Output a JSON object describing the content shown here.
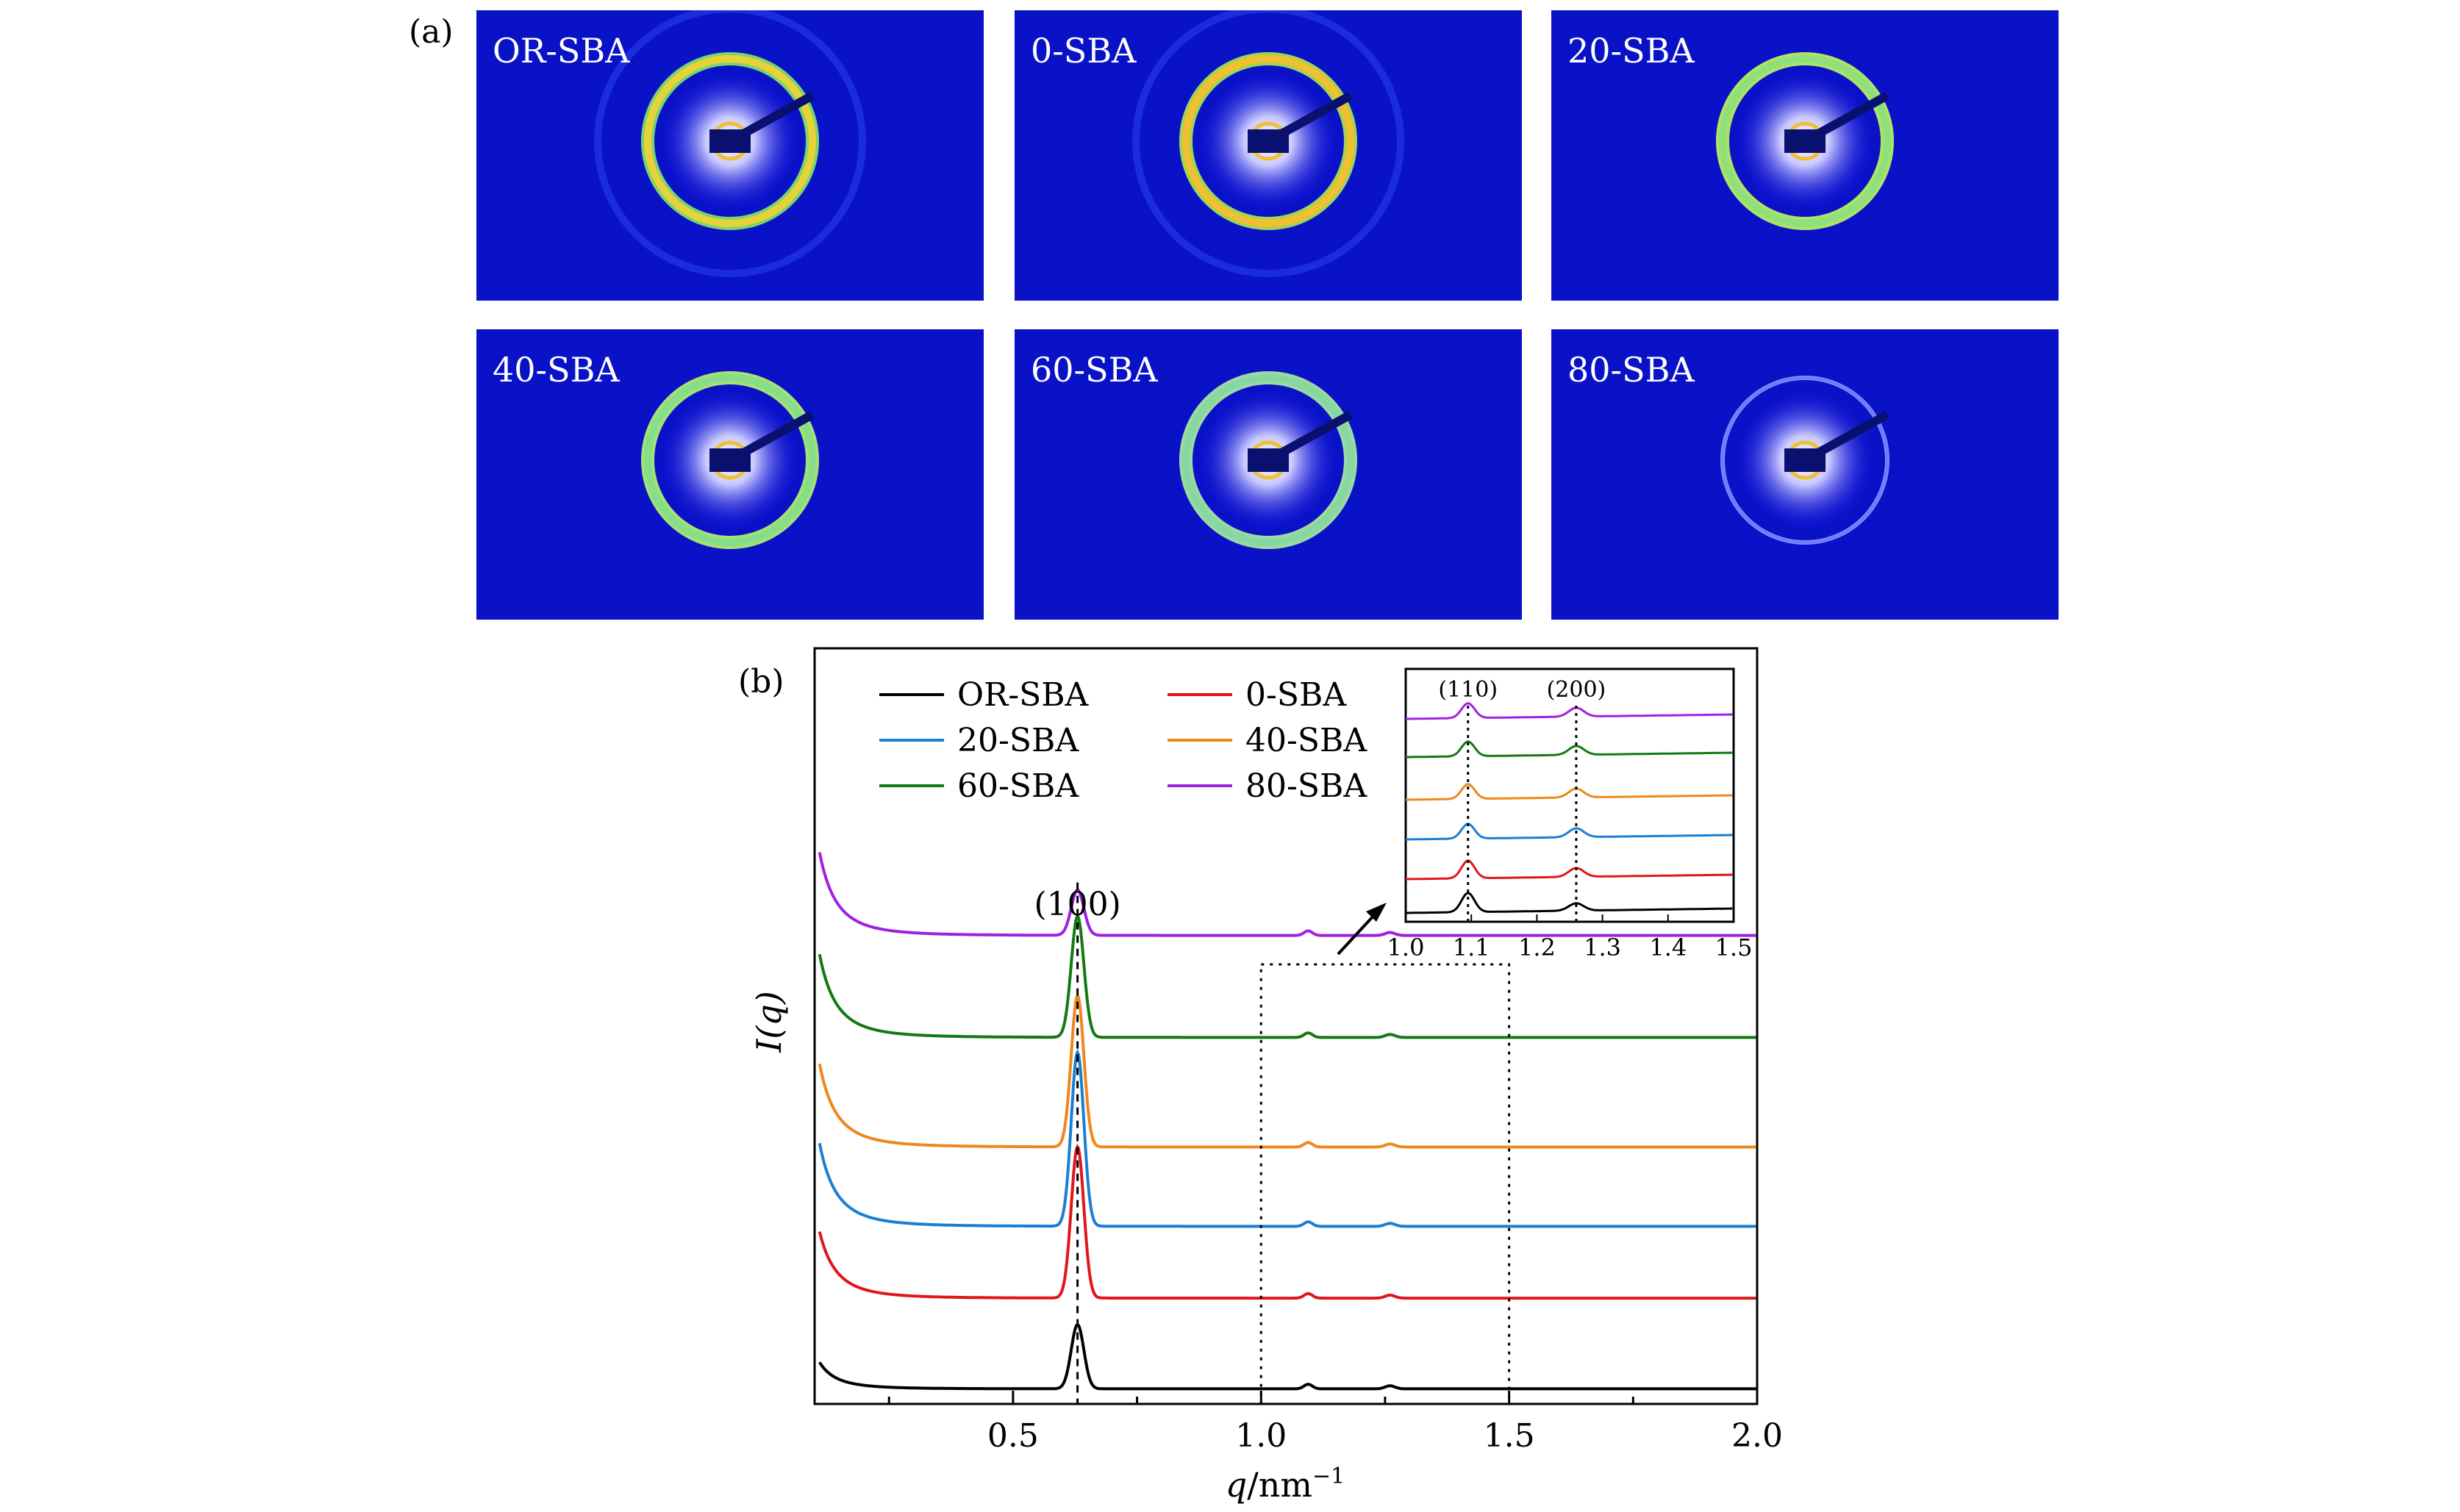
{
  "panel_a_label": "(a)",
  "panel_b_label": "(b)",
  "saxs_images": [
    {
      "label": "OR-SBA",
      "ring_colors": [
        "#e8d23a",
        "#7ee06a"
      ],
      "halo": true
    },
    {
      "label": "0-SBA",
      "ring_colors": [
        "#f0c030",
        "#a8e050"
      ],
      "halo": true
    },
    {
      "label": "20-SBA",
      "ring_colors": [
        "#8fe07a",
        "#b8ee60"
      ],
      "halo": false
    },
    {
      "label": "40-SBA",
      "ring_colors": [
        "#86de86",
        "#b0ec70"
      ],
      "halo": false
    },
    {
      "label": "60-SBA",
      "ring_colors": [
        "#86d8a0",
        "#a8e4a0"
      ],
      "halo": false
    },
    {
      "label": "80-SBA",
      "ring_colors": [
        "#6f78ff",
        "#8a94ff"
      ],
      "halo": false
    }
  ],
  "chart_data": {
    "type": "line",
    "xlabel": "q/nm",
    "xlabel_sup": "−1",
    "ylabel": "I(q)",
    "xlim": [
      0.1,
      2.0
    ],
    "xticks": [
      "0.5",
      "1.0",
      "1.5",
      "2.0"
    ],
    "annotation_peak": "(100)",
    "peak_q": 0.63,
    "series": [
      {
        "name": "OR-SBA",
        "color": "#000000",
        "baseline": 0.02,
        "peak_height": 0.085,
        "low_q": 0.16
      },
      {
        "name": "0-SBA",
        "color": "#e0161b",
        "baseline": 0.14,
        "peak_height": 0.2,
        "low_q": 0.4
      },
      {
        "name": "20-SBA",
        "color": "#1a7fd4",
        "baseline": 0.235,
        "peak_height": 0.23,
        "low_q": 0.5
      },
      {
        "name": "40-SBA",
        "color": "#f0861c",
        "baseline": 0.34,
        "peak_height": 0.2,
        "low_q": 0.5
      },
      {
        "name": "60-SBA",
        "color": "#137a13",
        "baseline": 0.485,
        "peak_height": 0.16,
        "low_q": 0.5
      },
      {
        "name": "80-SBA",
        "color": "#a020e0",
        "baseline": 0.62,
        "peak_height": 0.06,
        "low_q": 0.5
      }
    ],
    "inset": {
      "xlim": [
        1.0,
        1.5
      ],
      "xticks": [
        "1.0",
        "1.1",
        "1.2",
        "1.3",
        "1.4",
        "1.5"
      ],
      "peak_labels": [
        "(110)",
        "(200)"
      ],
      "peak_q": [
        1.095,
        1.26
      ]
    },
    "zoom_box_x": [
      1.0,
      1.5
    ],
    "legend_position": "top-left"
  }
}
